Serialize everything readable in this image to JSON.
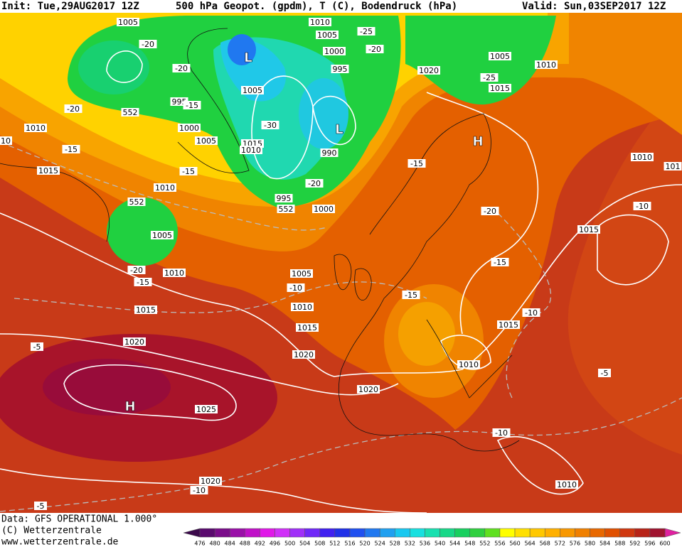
{
  "header": {
    "init": "Init: Tue,29AUG2017 12Z",
    "title": "500 hPa Geopot. (gpdm), T (C), Bodendruck (hPa)",
    "valid": "Valid: Sun,03SEP2017 12Z"
  },
  "footer": {
    "data": "Data: GFS OPERATIONAL 1.000°",
    "copyright": "(C) Wetterzentrale",
    "url": "www.wetterzentrale.de"
  },
  "legend": {
    "levels": [
      476,
      480,
      484,
      488,
      492,
      496,
      500,
      504,
      508,
      512,
      516,
      520,
      524,
      528,
      532,
      536,
      540,
      544,
      548,
      552,
      556,
      560,
      564,
      568,
      572,
      576,
      580,
      584,
      588,
      592,
      596,
      600
    ]
  },
  "map": {
    "pressure_centers": [
      "L",
      "L",
      "H",
      "H"
    ],
    "labels": [
      "1005",
      "1010",
      "1005",
      "-25",
      "-20",
      "1000",
      "-20",
      "-20",
      "995",
      "1005",
      "1020",
      "1005",
      "1010",
      "-25",
      "1015",
      "995",
      "-15",
      "-20",
      "552",
      "-30",
      "1010",
      "1000",
      "1005",
      "1015",
      "1010",
      "990",
      "-15",
      "10",
      "-15",
      "-15",
      "1015",
      "1010",
      "-20",
      "995",
      "552",
      "552",
      "1000",
      "-20",
      "1010",
      "101",
      "-10",
      "1015",
      "1005",
      "-20",
      "1010",
      "-15",
      "1005",
      "-15",
      "-10",
      "-15",
      "1010",
      "1015",
      "-10",
      "1015",
      "1015",
      "1020",
      "1020",
      "-5",
      "1010",
      "-5",
      "1020",
      "1025",
      "-10",
      "1020",
      "-10",
      "1010",
      "-5"
    ]
  }
}
